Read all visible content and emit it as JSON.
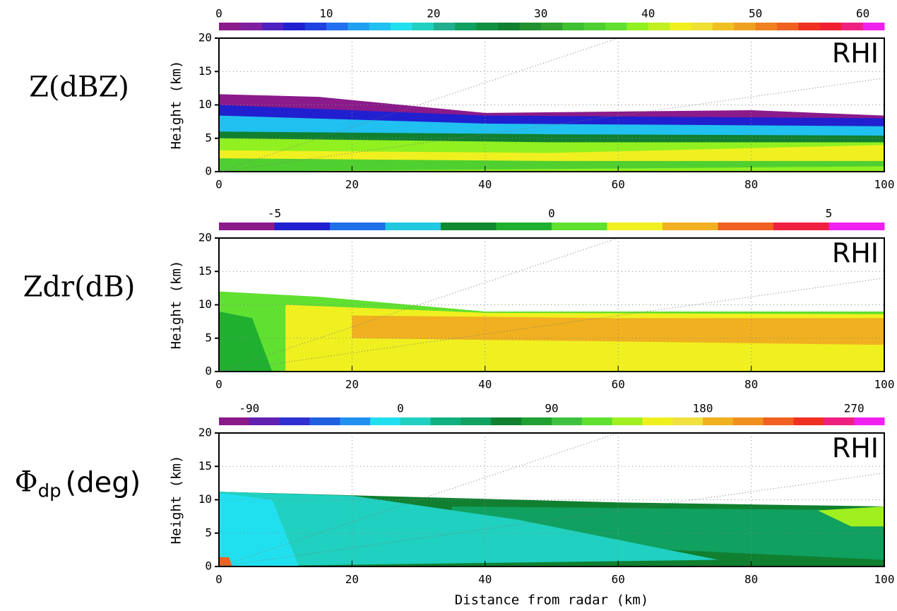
{
  "chart_data": [
    {
      "type": "heatmap",
      "label": "Z(dBZ)",
      "annotation": "RHI",
      "y_label": "Height (km)",
      "xlim": [
        0,
        100
      ],
      "xticks": [
        0,
        20,
        40,
        60,
        80,
        100
      ],
      "ylim": [
        0,
        20
      ],
      "yticks": [
        0,
        5,
        10,
        15,
        20
      ],
      "grid": true,
      "colorbar": {
        "lim": [
          0,
          62
        ],
        "ticks": [
          0,
          10,
          20,
          30,
          40,
          50,
          60
        ],
        "colors": [
          "#8b1a8b",
          "#8020a0",
          "#5020c0",
          "#2020d0",
          "#2040e0",
          "#2070f0",
          "#20a0f0",
          "#20c0f0",
          "#20e0f0",
          "#20d0c0",
          "#20b090",
          "#10a060",
          "#109040",
          "#108030",
          "#209030",
          "#30a030",
          "#40c030",
          "#50d030",
          "#60e030",
          "#90f020",
          "#c0f020",
          "#f0f020",
          "#f0e030",
          "#f0c020",
          "#f0a020",
          "#f08020",
          "#f06020",
          "#f03020",
          "#f02030",
          "#f02080",
          "#f020f0"
        ]
      }
    },
    {
      "type": "heatmap",
      "label": "Zdr(dB)",
      "annotation": "RHI",
      "y_label": "Height (km)",
      "xlim": [
        0,
        100
      ],
      "xticks": [
        0,
        20,
        40,
        60,
        80,
        100
      ],
      "ylim": [
        0,
        20
      ],
      "yticks": [
        0,
        5,
        10,
        15,
        20
      ],
      "grid": true,
      "colorbar": {
        "lim": [
          -6,
          6
        ],
        "ticks": [
          -5,
          0,
          5
        ],
        "colors": [
          "#8b1a8b",
          "#2020d0",
          "#1e6fe8",
          "#20c8e0",
          "#108a30",
          "#20b030",
          "#60e030",
          "#f0f020",
          "#f0b020",
          "#f06020",
          "#f02040",
          "#f020f0"
        ]
      }
    },
    {
      "type": "heatmap",
      "label": "Φ",
      "label_sub": "dp",
      "label_unit": "(deg)",
      "annotation": "RHI",
      "y_label": "Height (km)",
      "x_label": "Distance from radar (km)",
      "xlim": [
        0,
        100
      ],
      "xticks": [
        0,
        20,
        40,
        60,
        80,
        100
      ],
      "ylim": [
        0,
        20
      ],
      "yticks": [
        0,
        5,
        10,
        15,
        20
      ],
      "grid": true,
      "colorbar": {
        "lim": [
          -108,
          288
        ],
        "ticks": [
          -90,
          0,
          90,
          180,
          270
        ],
        "colors": [
          "#8b1a8b",
          "#6020b0",
          "#3030d0",
          "#2060e0",
          "#2090f0",
          "#20e0f0",
          "#20d0c0",
          "#10b080",
          "#10a060",
          "#108030",
          "#20a030",
          "#40c040",
          "#60e030",
          "#a0f020",
          "#f0f020",
          "#f0e040",
          "#f0b020",
          "#f09020",
          "#f06020",
          "#f03020",
          "#f02080",
          "#f020f0"
        ]
      }
    }
  ]
}
